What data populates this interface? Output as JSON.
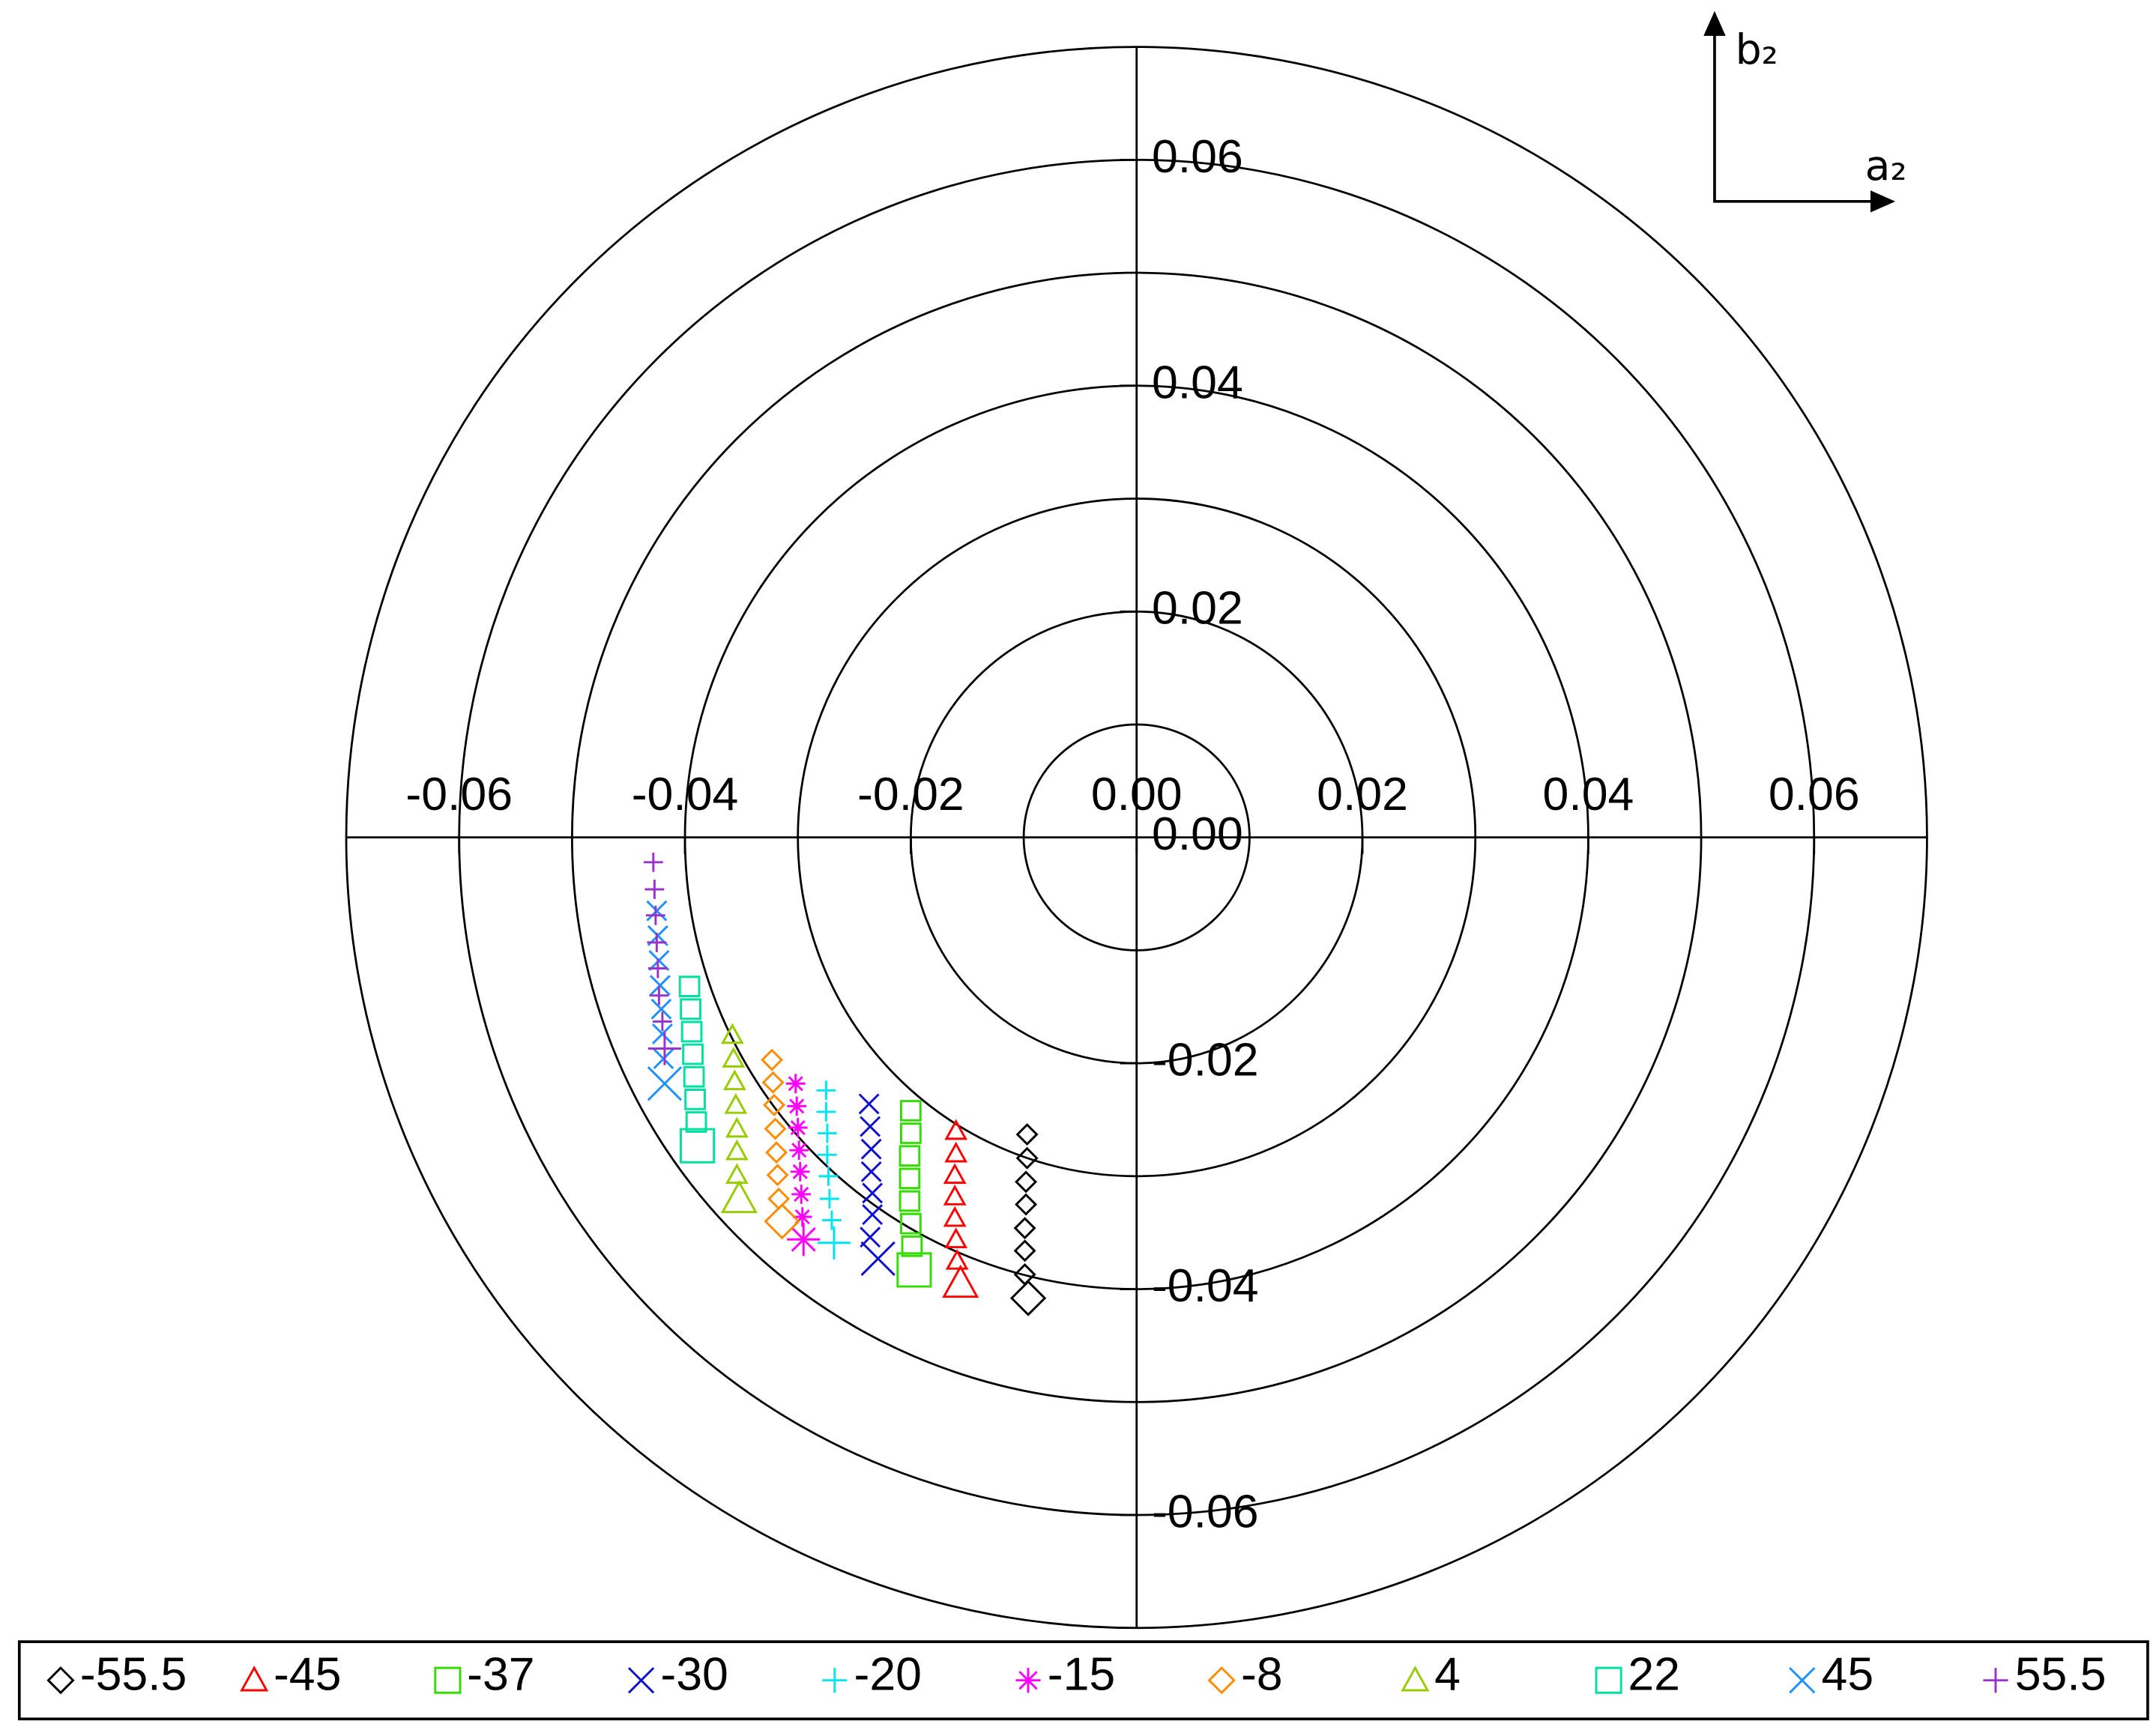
{
  "chart_data": {
    "type": "scatter",
    "x_label": "a₂",
    "y_label": "b₂",
    "xlim": [
      -0.07,
      0.07
    ],
    "ylim": [
      -0.07,
      0.07
    ],
    "xticks": [
      -0.06,
      -0.04,
      -0.02,
      {
        "value": 0,
        "label": "0.00"
      },
      0.02,
      0.04,
      0.06
    ],
    "yticks": [
      -0.06,
      -0.04,
      -0.02,
      {
        "value": 0,
        "label": "0.00"
      },
      0.02,
      0.04,
      0.06
    ],
    "rings": [
      0.01,
      0.02,
      0.03,
      0.04,
      0.05,
      0.06,
      0.07
    ],
    "legend": "bottom",
    "series": [
      {
        "name": "-55.5",
        "color": "#000000",
        "marker": "diamond",
        "x": [
          -0.0097,
          -0.0097,
          -0.0098,
          -0.0098,
          -0.0099,
          -0.0099,
          -0.0099,
          -0.0096
        ],
        "values": [
          -0.0263,
          -0.0284,
          -0.0305,
          -0.0325,
          -0.0346,
          -0.0366,
          -0.0387,
          -0.0408
        ]
      },
      {
        "name": "-45",
        "color": "#ff0000",
        "marker": "triangle",
        "x": [
          -0.016,
          -0.016,
          -0.0161,
          -0.0161,
          -0.0161,
          -0.016,
          -0.0159,
          -0.0156
        ],
        "values": [
          -0.026,
          -0.028,
          -0.0299,
          -0.0318,
          -0.0337,
          -0.0356,
          -0.0375,
          -0.0395
        ]
      },
      {
        "name": "-37",
        "color": "#33dd00",
        "marker": "square",
        "x": [
          -0.02,
          -0.02,
          -0.0201,
          -0.0201,
          -0.0201,
          -0.02,
          -0.0199,
          -0.0197
        ],
        "values": [
          -0.0242,
          -0.0262,
          -0.0282,
          -0.0302,
          -0.0322,
          -0.0342,
          -0.0362,
          -0.0383
        ]
      },
      {
        "name": "-30",
        "color": "#1010d0",
        "marker": "x",
        "x": [
          -0.0237,
          -0.0236,
          -0.0235,
          -0.0235,
          -0.0234,
          -0.0234,
          -0.0236,
          -0.0229
        ],
        "values": [
          -0.0236,
          -0.0256,
          -0.0276,
          -0.0296,
          -0.0315,
          -0.0334,
          -0.0354,
          -0.0373
        ]
      },
      {
        "name": "-20",
        "color": "#00e5ee",
        "marker": "plus",
        "x": [
          -0.0275,
          -0.0275,
          -0.0274,
          -0.0274,
          -0.0273,
          -0.0272,
          -0.027,
          -0.0268
        ],
        "values": [
          -0.0224,
          -0.0243,
          -0.0262,
          -0.0281,
          -0.03,
          -0.032,
          -0.0339,
          -0.0359
        ]
      },
      {
        "name": "-15",
        "color": "#ff00ff",
        "marker": "star",
        "x": [
          -0.0302,
          -0.0301,
          -0.03,
          -0.0299,
          -0.0298,
          -0.0297,
          -0.0296,
          -0.0295
        ],
        "values": [
          -0.0218,
          -0.0238,
          -0.0257,
          -0.0277,
          -0.0296,
          -0.0316,
          -0.0336,
          -0.0356
        ]
      },
      {
        "name": "-8",
        "color": "#ff8c00",
        "marker": "diamond",
        "x": [
          -0.0323,
          -0.0322,
          -0.0321,
          -0.032,
          -0.0319,
          -0.0318,
          -0.0317,
          -0.0314
        ],
        "values": [
          -0.0197,
          -0.0217,
          -0.0237,
          -0.0258,
          -0.0279,
          -0.0299,
          -0.032,
          -0.034
        ]
      },
      {
        "name": "4",
        "color": "#99cc00",
        "marker": "triangle",
        "x": [
          -0.0358,
          -0.0357,
          -0.0356,
          -0.0355,
          -0.0354,
          -0.0354,
          -0.0354,
          -0.0352
        ],
        "values": [
          -0.0175,
          -0.0196,
          -0.0216,
          -0.0237,
          -0.0258,
          -0.0278,
          -0.0299,
          -0.032
        ]
      },
      {
        "name": "22",
        "color": "#00e0a0",
        "marker": "square",
        "x": [
          -0.0396,
          -0.0395,
          -0.0394,
          -0.0393,
          -0.0392,
          -0.0391,
          -0.039,
          -0.0389
        ],
        "values": [
          -0.0132,
          -0.0152,
          -0.0172,
          -0.0192,
          -0.0212,
          -0.0232,
          -0.0252,
          -0.0273
        ]
      },
      {
        "name": "45",
        "color": "#1e90ff",
        "marker": "x",
        "x": [
          -0.0425,
          -0.0424,
          -0.0423,
          -0.0422,
          -0.0421,
          -0.042,
          -0.0419,
          -0.0418
        ],
        "values": [
          -0.0065,
          -0.0087,
          -0.0109,
          -0.0131,
          -0.0152,
          -0.0174,
          -0.0196,
          -0.0218
        ]
      },
      {
        "name": "55.5",
        "color": "#9933cc",
        "marker": "plus",
        "x": [
          -0.0428,
          -0.0427,
          -0.0426,
          -0.0425,
          -0.0424,
          -0.0423,
          -0.042,
          -0.0418
        ],
        "values": [
          -0.0022,
          -0.0046,
          -0.0069,
          -0.0093,
          -0.0116,
          -0.014,
          -0.0163,
          -0.0187
        ]
      }
    ]
  }
}
